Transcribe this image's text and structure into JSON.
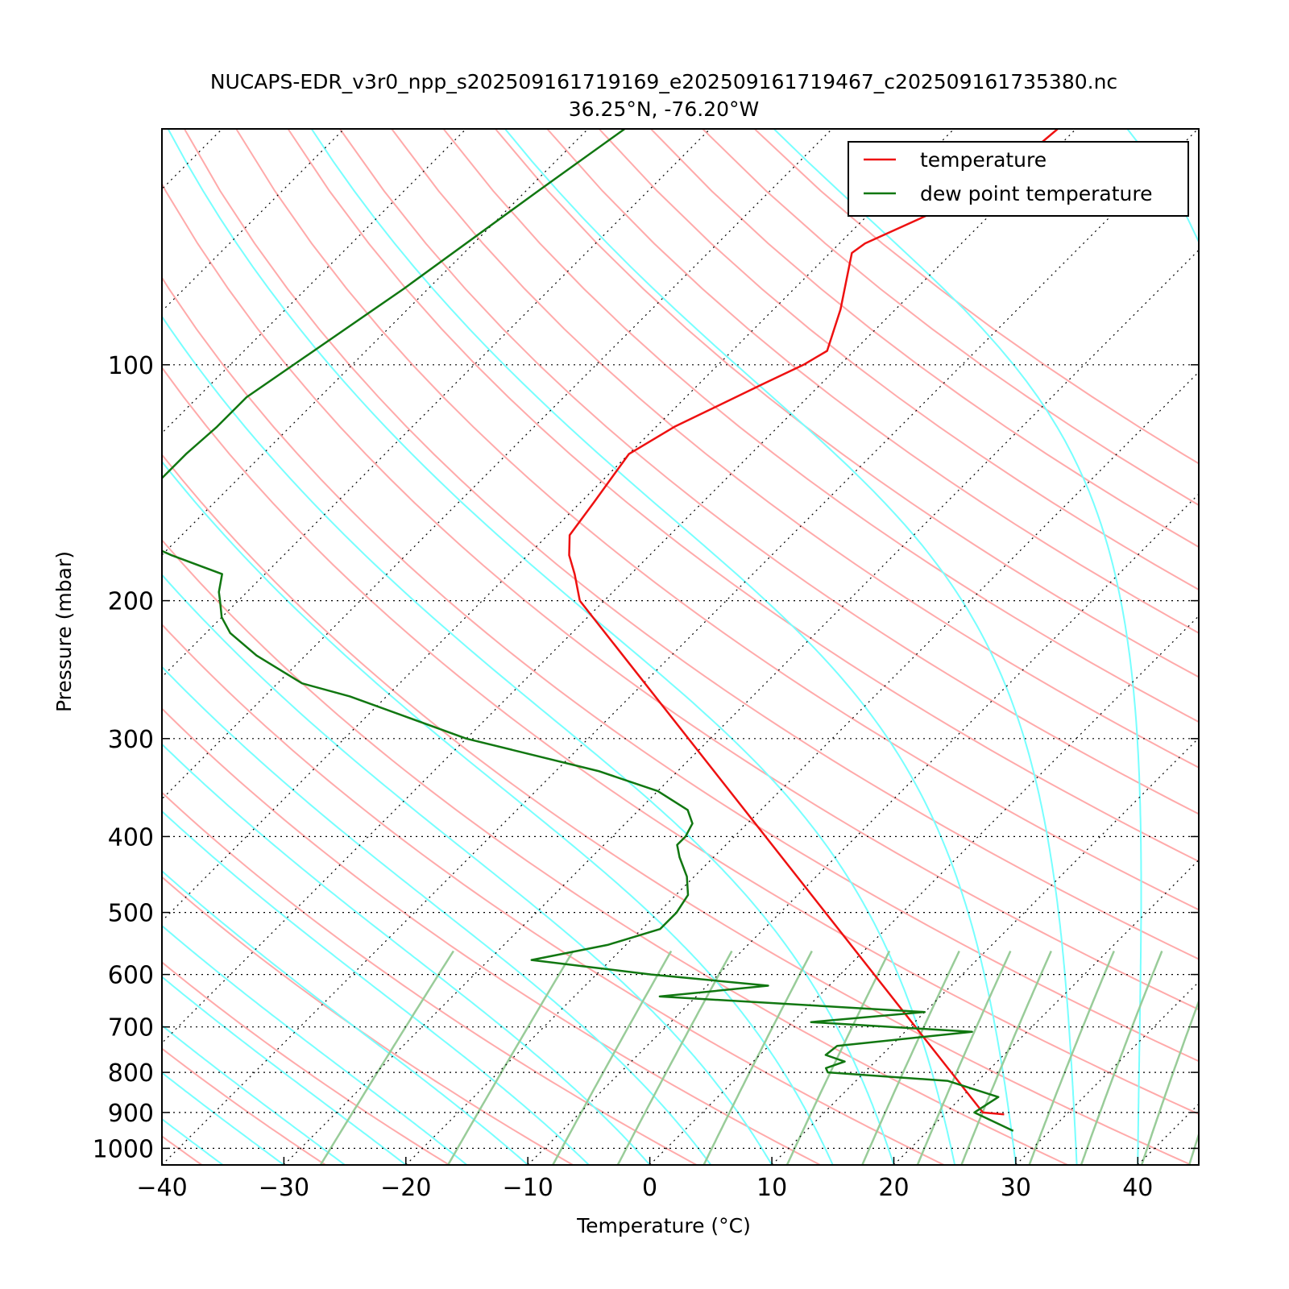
{
  "chart_data": {
    "type": "line",
    "title": "NUCAPS-EDR_v3r0_npp_s202509161719169_e202509161719467_c202509161735380.nc",
    "subtitle": "36.25°N, -76.20°W",
    "xlabel": "Temperature (°C)",
    "ylabel": "Pressure (mbar)",
    "xlim": [
      -40,
      45
    ],
    "ylim": [
      1050,
      50
    ],
    "y_scale": "log",
    "skew_t": true,
    "grid": true,
    "legend_position": "top-right",
    "x_ticks": [
      {
        "value": -40,
        "label": "−40"
      },
      {
        "value": -30,
        "label": "−30"
      },
      {
        "value": -20,
        "label": "−20"
      },
      {
        "value": -10,
        "label": "−10"
      },
      {
        "value": 0,
        "label": "0"
      },
      {
        "value": 10,
        "label": "10"
      },
      {
        "value": 20,
        "label": "20"
      },
      {
        "value": 30,
        "label": "30"
      },
      {
        "value": 40,
        "label": "40"
      }
    ],
    "y_ticks": [
      {
        "value": 100,
        "label": "100"
      },
      {
        "value": 200,
        "label": "200"
      },
      {
        "value": 300,
        "label": "300"
      },
      {
        "value": 400,
        "label": "400"
      },
      {
        "value": 500,
        "label": "500"
      },
      {
        "value": 600,
        "label": "600"
      },
      {
        "value": 700,
        "label": "700"
      },
      {
        "value": 800,
        "label": "800"
      },
      {
        "value": 900,
        "label": "900"
      },
      {
        "value": 1000,
        "label": "1000"
      }
    ],
    "colors": {
      "temperature": "#ee1111",
      "dewpoint": "#117711",
      "isotherm": "#000000",
      "dry_adiabat": "#ffaaaa",
      "moist_adiabat": "#77ffff",
      "mixing_ratio": "#99cc99"
    },
    "series": [
      {
        "name": "temperature",
        "points": [
          {
            "p": 50.0,
            "t": -51.5
          },
          {
            "p": 55.0,
            "t": -52.0
          },
          {
            "p": 60.0,
            "t": -52.7
          },
          {
            "p": 70.0,
            "t": -57.9
          },
          {
            "p": 72.0,
            "t": -58.2
          },
          {
            "p": 85.0,
            "t": -54.5
          },
          {
            "p": 96.0,
            "t": -52.2
          },
          {
            "p": 100.0,
            "t": -53.0
          },
          {
            "p": 106.0,
            "t": -54.8
          },
          {
            "p": 120.0,
            "t": -58.5
          },
          {
            "p": 130.0,
            "t": -60.0
          },
          {
            "p": 150.0,
            "t": -58.9
          },
          {
            "p": 165.0,
            "t": -58.2
          },
          {
            "p": 175.0,
            "t": -56.6
          },
          {
            "p": 185.0,
            "t": -54.6
          },
          {
            "p": 200.0,
            "t": -52.0
          },
          {
            "p": 900.0,
            "t": 23.0
          },
          {
            "p": 905.0,
            "t": 24.9
          }
        ]
      },
      {
        "name": "dew point temperature",
        "points": [
          {
            "p": 50.0,
            "t": -87.0
          },
          {
            "p": 60.0,
            "t": -89.0
          },
          {
            "p": 80.0,
            "t": -92.0
          },
          {
            "p": 110.0,
            "t": -96.0
          },
          {
            "p": 120.0,
            "t": -96.0
          },
          {
            "p": 130.0,
            "t": -96.3
          },
          {
            "p": 140.0,
            "t": -96.3
          },
          {
            "p": 150.0,
            "t": -95.6
          },
          {
            "p": 165.0,
            "t": -94.5
          },
          {
            "p": 175.0,
            "t": -89.2
          },
          {
            "p": 185.0,
            "t": -83.5
          },
          {
            "p": 195.0,
            "t": -82.3
          },
          {
            "p": 200.0,
            "t": -81.5
          },
          {
            "p": 210.0,
            "t": -80.0
          },
          {
            "p": 220.0,
            "t": -78.0
          },
          {
            "p": 235.0,
            "t": -74.0
          },
          {
            "p": 255.0,
            "t": -68.0
          },
          {
            "p": 265.0,
            "t": -63.0
          },
          {
            "p": 300.0,
            "t": -50.0
          },
          {
            "p": 330.0,
            "t": -36.5
          },
          {
            "p": 350.0,
            "t": -30.0
          },
          {
            "p": 370.0,
            "t": -26.0
          },
          {
            "p": 385.0,
            "t": -24.5
          },
          {
            "p": 400.0,
            "t": -24.0
          },
          {
            "p": 410.0,
            "t": -24.0
          },
          {
            "p": 425.0,
            "t": -22.8
          },
          {
            "p": 450.0,
            "t": -20.6
          },
          {
            "p": 475.0,
            "t": -19.0
          },
          {
            "p": 500.0,
            "t": -18.5
          },
          {
            "p": 525.0,
            "t": -18.5
          },
          {
            "p": 550.0,
            "t": -21.5
          },
          {
            "p": 575.0,
            "t": -26.5
          },
          {
            "p": 600.0,
            "t": -15.5
          },
          {
            "p": 620.0,
            "t": -5.0
          },
          {
            "p": 640.0,
            "t": -13.0
          },
          {
            "p": 670.0,
            "t": 10.0
          },
          {
            "p": 690.0,
            "t": 1.5
          },
          {
            "p": 710.0,
            "t": 15.5
          },
          {
            "p": 740.0,
            "t": 5.6
          },
          {
            "p": 760.0,
            "t": 5.4
          },
          {
            "p": 775.0,
            "t": 7.5
          },
          {
            "p": 790.0,
            "t": 6.5
          },
          {
            "p": 800.0,
            "t": 7.0
          },
          {
            "p": 820.0,
            "t": 17.5
          },
          {
            "p": 860.0,
            "t": 23.0
          },
          {
            "p": 900.0,
            "t": 22.3
          },
          {
            "p": 950.0,
            "t": 27.0
          }
        ]
      }
    ]
  }
}
